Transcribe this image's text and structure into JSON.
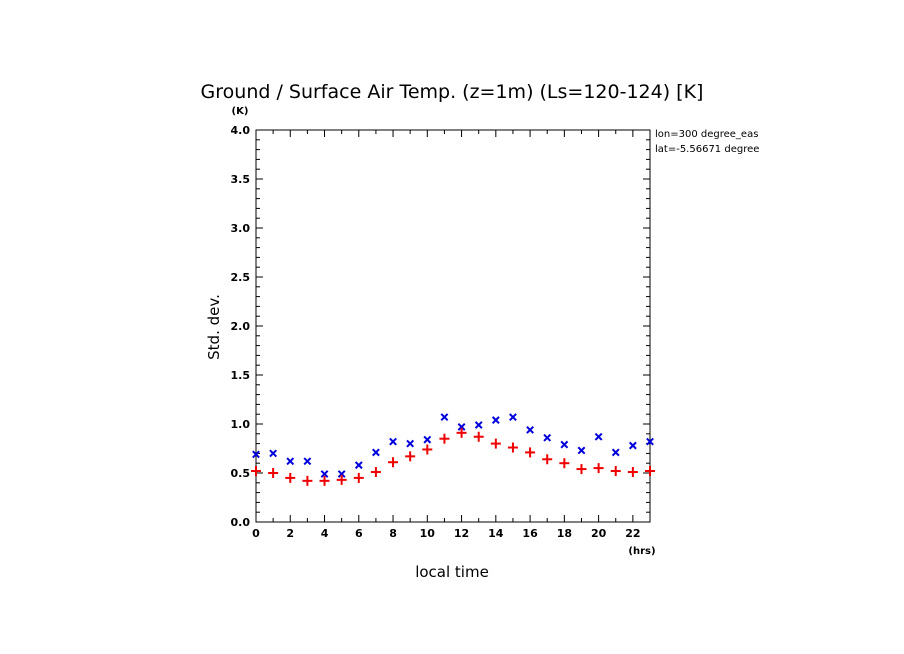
{
  "chart_data": {
    "type": "scatter",
    "title": "Ground / Surface Air Temp. (z=1m) (Ls=120-124) [K]",
    "xlabel": "local time",
    "ylabel": "Std. dev.",
    "x_unit": "(hrs)",
    "y_unit": "(K)",
    "xlim": [
      0,
      23
    ],
    "ylim": [
      0,
      4.0
    ],
    "x_ticks": [
      "0",
      "2",
      "4",
      "6",
      "8",
      "10",
      "12",
      "14",
      "16",
      "18",
      "20",
      "22"
    ],
    "y_ticks": [
      "0.0",
      "0.5",
      "1.0",
      "1.5",
      "2.0",
      "2.5",
      "3.0",
      "3.5",
      "4.0"
    ],
    "annotations": [
      "lon=300 degree_eas",
      "lat=-5.56671 degree"
    ],
    "grid": false,
    "legend": "none",
    "x": [
      0,
      1,
      2,
      3,
      4,
      5,
      6,
      7,
      8,
      9,
      10,
      11,
      12,
      13,
      14,
      15,
      16,
      17,
      18,
      19,
      20,
      21,
      22,
      23
    ],
    "series": [
      {
        "marker": "x",
        "color": "#0000dd",
        "values": [
          0.69,
          0.7,
          0.62,
          0.62,
          0.49,
          0.49,
          0.58,
          0.71,
          0.82,
          0.8,
          0.84,
          1.07,
          0.97,
          0.99,
          1.04,
          1.07,
          0.94,
          0.86,
          0.79,
          0.73,
          0.87,
          0.71,
          0.78,
          0.82
        ]
      },
      {
        "marker": "+",
        "color": "#ee0000",
        "values": [
          0.52,
          0.5,
          0.45,
          0.42,
          0.42,
          0.43,
          0.45,
          0.51,
          0.61,
          0.67,
          0.74,
          0.85,
          0.91,
          0.87,
          0.8,
          0.76,
          0.71,
          0.64,
          0.6,
          0.54,
          0.55,
          0.52,
          0.51,
          0.52
        ]
      }
    ]
  }
}
